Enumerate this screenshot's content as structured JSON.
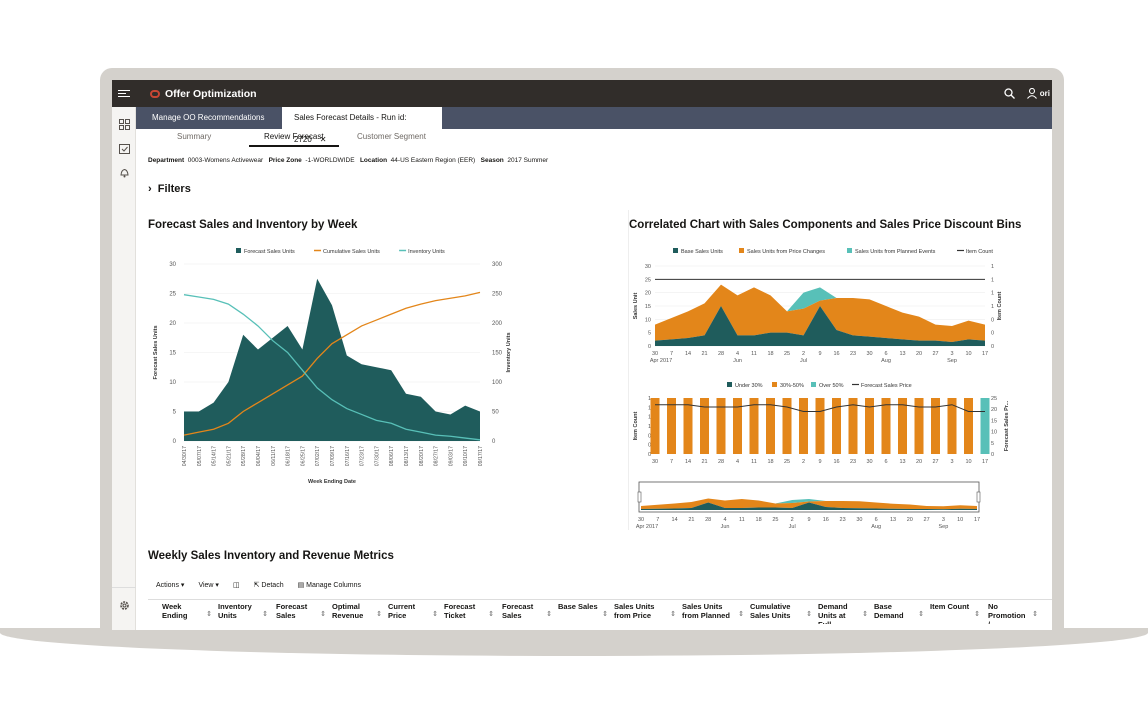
{
  "app": {
    "title": "Offer Optimization",
    "user_initials": "ori"
  },
  "tabs": [
    {
      "label": "Manage OO Recommendations",
      "active": false
    },
    {
      "label": "Sales Forecast Details - Run id: 2720",
      "active": true,
      "closable": true
    }
  ],
  "subtabs": [
    {
      "label": "Summary"
    },
    {
      "label": "Review Forecast",
      "active": true
    },
    {
      "label": "Customer Segment"
    }
  ],
  "meta": {
    "department_label": "Department",
    "department_value": "0003-Womens Activewear",
    "price_zone_label": "Price Zone",
    "price_zone_value": "-1-WORLDWIDE",
    "location_label": "Location",
    "location_value": "44-US Eastern Region (EER)",
    "season_label": "Season",
    "season_value": "2017 Summer"
  },
  "filters_label": "Filters",
  "chart1_title": "Forecast Sales and Inventory by Week",
  "chart2_title": "Correlated Chart with Sales Components and Sales Price Discount Bins",
  "table_title": "Weekly Sales Inventory and Revenue Metrics",
  "toolbar": {
    "actions": "Actions",
    "view": "View",
    "detach": "Detach",
    "manage_columns": "Manage Columns"
  },
  "columns": [
    "Week Ending",
    "Inventory Units",
    "Forecast Sales",
    "Optimal Revenue",
    "Current Price",
    "Forecast Ticket",
    "Forecast Sales",
    "Base Sales",
    "Sales Units from Price",
    "Sales Units from Planned",
    "Cumulative Sales Units",
    "Demand Units at Full",
    "Base Demand",
    "Item Count",
    "No Promotion /"
  ],
  "colors": {
    "teal_dark": "#1f5c5c",
    "orange": "#e3861a",
    "teal_light": "#58c0b8",
    "topbar": "#312d2a",
    "tabsbar": "#4a5266",
    "brand_red": "#c74634"
  },
  "chart_data": [
    {
      "type": "area",
      "title": "Forecast Sales and Inventory by Week",
      "xlabel": "Week Ending Date",
      "ylabel": "Forecast Sales Units",
      "y2label": "Inventory Units",
      "ylim": [
        0,
        30
      ],
      "y2lim": [
        0,
        300
      ],
      "yticks": [
        "0",
        "5",
        "10",
        "15",
        "20",
        "25",
        "30"
      ],
      "y2ticks": [
        "0",
        "50",
        "100",
        "150",
        "200",
        "250",
        "300"
      ],
      "categories": [
        "04/30/17",
        "05/07/17",
        "05/14/17",
        "05/21/17",
        "05/28/17",
        "06/04/17",
        "06/11/17",
        "06/18/17",
        "06/25/17",
        "07/02/17",
        "07/09/17",
        "07/16/17",
        "07/23/17",
        "07/30/17",
        "08/06/17",
        "08/13/17",
        "08/20/17",
        "08/27/17",
        "09/03/17",
        "09/10/17",
        "09/17/17"
      ],
      "series": [
        {
          "name": "Forecast Sales Units",
          "axis": "left",
          "kind": "area",
          "values": [
            5,
            5,
            6.5,
            10,
            18,
            15.5,
            17.5,
            19.5,
            15.5,
            27.5,
            23,
            14.5,
            13,
            12.5,
            12,
            8,
            7.5,
            5,
            4.5,
            6,
            5
          ]
        },
        {
          "name": "Cumulative Sales Units",
          "axis": "right",
          "kind": "line",
          "values": [
            10,
            15,
            20,
            30,
            50,
            65,
            80,
            95,
            110,
            140,
            165,
            180,
            195,
            205,
            215,
            225,
            232,
            238,
            242,
            246,
            252
          ]
        },
        {
          "name": "Inventory Units",
          "axis": "right",
          "kind": "line",
          "values": [
            248,
            244,
            240,
            232,
            215,
            195,
            170,
            150,
            120,
            90,
            70,
            55,
            45,
            35,
            30,
            20,
            15,
            10,
            8,
            5,
            2
          ]
        }
      ],
      "legend": "top"
    },
    {
      "type": "area",
      "title": "",
      "ylabel": "Sales Unit",
      "y2label": "Item Count",
      "ylim": [
        0,
        30
      ],
      "y2lim": [
        0,
        1
      ],
      "yticks": [
        "0",
        "5",
        "10",
        "15",
        "20",
        "25",
        "30"
      ],
      "y2ticks": [
        "0",
        "0",
        "0",
        "1",
        "1",
        "1",
        "1"
      ],
      "xticks": [
        "30",
        "7",
        "14",
        "21",
        "28",
        "4",
        "11",
        "18",
        "25",
        "2",
        "9",
        "16",
        "23",
        "30",
        "6",
        "13",
        "20",
        "27",
        "3",
        "10",
        "17"
      ],
      "xsub": [
        {
          "label": "Apr 2017",
          "at": 0
        },
        {
          "label": "Jun",
          "at": 5
        },
        {
          "label": "Jul",
          "at": 9
        },
        {
          "label": "Aug",
          "at": 14
        },
        {
          "label": "Sep",
          "at": 18
        }
      ],
      "series": [
        {
          "name": "Base Sales Units",
          "values": [
            2,
            2.5,
            3,
            4,
            15,
            4,
            4,
            5,
            5,
            4,
            15,
            6,
            4,
            3.5,
            3,
            2.5,
            2,
            2,
            1.5,
            2.5,
            2
          ]
        },
        {
          "name": "Sales Units from Price Changes",
          "values": [
            6,
            8,
            10,
            12,
            8,
            15,
            18,
            14,
            8,
            10,
            2,
            12,
            14,
            14,
            12,
            10,
            9,
            6,
            6,
            7,
            6
          ]
        },
        {
          "name": "Sales Units from Planned Events",
          "values": [
            0,
            0,
            0,
            0,
            0,
            0,
            0,
            0,
            0,
            6,
            5,
            0,
            0,
            0,
            0,
            0,
            0,
            0,
            0,
            0,
            0
          ]
        },
        {
          "name": "Item Count",
          "values": [
            1,
            1,
            1,
            1,
            1,
            1,
            1,
            1,
            1,
            1,
            1,
            1,
            1,
            1,
            1,
            1,
            1,
            1,
            1,
            1,
            1
          ]
        }
      ]
    },
    {
      "type": "bar",
      "ylabel": "Item Count",
      "y2label": "Forecast Sales Pr...",
      "ylim": [
        0,
        1
      ],
      "y2lim": [
        0,
        25
      ],
      "yticks": [
        "0",
        "0",
        "0",
        "1",
        "1",
        "1",
        "1"
      ],
      "y2ticks": [
        "0",
        "5",
        "10",
        "15",
        "20",
        "25"
      ],
      "xticks": [
        "30",
        "7",
        "14",
        "21",
        "28",
        "4",
        "11",
        "18",
        "25",
        "2",
        "9",
        "16",
        "23",
        "30",
        "6",
        "13",
        "20",
        "27",
        "3",
        "10",
        "17"
      ],
      "series": [
        {
          "name": "Under 30%",
          "values": [
            0,
            0,
            0,
            0,
            0,
            0,
            0,
            0,
            0,
            0,
            0,
            0,
            0,
            0,
            0,
            0,
            0,
            0,
            0,
            0,
            0
          ]
        },
        {
          "name": "30%-50%",
          "values": [
            1,
            1,
            1,
            1,
            1,
            1,
            1,
            1,
            1,
            1,
            1,
            1,
            1,
            1,
            1,
            1,
            1,
            1,
            1,
            1,
            0
          ]
        },
        {
          "name": "Over 50%",
          "values": [
            0,
            0,
            0,
            0,
            0,
            0,
            0,
            0,
            0,
            0,
            0,
            0,
            0,
            0,
            0,
            0,
            0,
            0,
            0,
            0,
            1
          ]
        },
        {
          "name": "Forecast Sales Price",
          "values": [
            22,
            22,
            22,
            21,
            21,
            21,
            22,
            22,
            21,
            19,
            19,
            21,
            22,
            21,
            22,
            22,
            21,
            21,
            22,
            19,
            19
          ]
        }
      ]
    },
    {
      "type": "area",
      "title": "",
      "xticks": [
        "30",
        "7",
        "14",
        "21",
        "28",
        "4",
        "11",
        "18",
        "25",
        "2",
        "9",
        "16",
        "23",
        "30",
        "6",
        "13",
        "20",
        "27",
        "3",
        "10",
        "17"
      ],
      "xsub": [
        {
          "label": "Apr 2017",
          "at": 0
        },
        {
          "label": "Jun",
          "at": 5
        },
        {
          "label": "Jul",
          "at": 9
        },
        {
          "label": "Aug",
          "at": 14
        },
        {
          "label": "Sep",
          "at": 18
        }
      ]
    }
  ]
}
